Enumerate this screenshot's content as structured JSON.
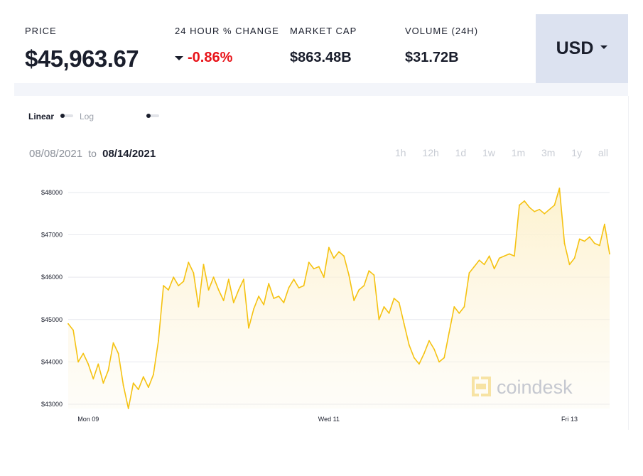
{
  "stats": {
    "price": {
      "label": "PRICE",
      "value": "$45,963.67"
    },
    "change": {
      "label": "24 HOUR % CHANGE",
      "value": "-0.86%"
    },
    "market_cap": {
      "label": "MARKET CAP",
      "value": "$863.48B"
    },
    "volume": {
      "label": "VOLUME (24H)",
      "value": "$31.72B"
    }
  },
  "currency": {
    "selected": "USD"
  },
  "scale_toggle": {
    "linear_label": "Linear",
    "log_label": "Log"
  },
  "date_range": {
    "from": "08/08/2021",
    "to_word": "to",
    "to": "08/14/2021"
  },
  "range_buttons": [
    "1h",
    "12h",
    "1d",
    "1w",
    "1m",
    "3m",
    "1y",
    "all"
  ],
  "watermark": "coindesk",
  "colors": {
    "line": "#f5c211",
    "fill": "#fdf3d6",
    "negative": "#e8141a",
    "currency_bg": "#dce2f0"
  },
  "chart_data": {
    "type": "area",
    "title": "",
    "xlabel": "",
    "ylabel": "",
    "x_ticks": [
      "Mon 09",
      "Wed 11",
      "Fri 13"
    ],
    "y_ticks": [
      "$43000",
      "$44000",
      "$45000",
      "$46000",
      "$47000",
      "$48000"
    ],
    "y_tick_values": [
      43000,
      44000,
      45000,
      46000,
      47000,
      48000
    ],
    "ylim": [
      42900,
      48150
    ],
    "x_tick_times": [
      "2021-08-09 00:00",
      "2021-08-11 00:00",
      "2021-08-13 00:00"
    ],
    "grid": "horizontal",
    "series": [
      {
        "values": [
          [
            "2021-08-08 20:00",
            44900
          ],
          [
            "2021-08-08 21:00",
            44750
          ],
          [
            "2021-08-08 22:00",
            44000
          ],
          [
            "2021-08-08 23:00",
            44200
          ],
          [
            "2021-08-09 00:00",
            43950
          ],
          [
            "2021-08-09 01:00",
            43600
          ],
          [
            "2021-08-09 02:00",
            43950
          ],
          [
            "2021-08-09 03:00",
            43500
          ],
          [
            "2021-08-09 04:00",
            43800
          ],
          [
            "2021-08-09 05:00",
            44450
          ],
          [
            "2021-08-09 06:00",
            44200
          ],
          [
            "2021-08-09 07:00",
            43450
          ],
          [
            "2021-08-09 08:00",
            42900
          ],
          [
            "2021-08-09 09:00",
            43500
          ],
          [
            "2021-08-09 10:00",
            43350
          ],
          [
            "2021-08-09 11:00",
            43650
          ],
          [
            "2021-08-09 12:00",
            43400
          ],
          [
            "2021-08-09 13:00",
            43700
          ],
          [
            "2021-08-09 14:00",
            44500
          ],
          [
            "2021-08-09 15:00",
            45800
          ],
          [
            "2021-08-09 16:00",
            45700
          ],
          [
            "2021-08-09 17:00",
            46000
          ],
          [
            "2021-08-09 18:00",
            45800
          ],
          [
            "2021-08-09 19:00",
            45900
          ],
          [
            "2021-08-09 20:00",
            46350
          ],
          [
            "2021-08-09 21:00",
            46100
          ],
          [
            "2021-08-09 22:00",
            45300
          ],
          [
            "2021-08-09 23:00",
            46300
          ],
          [
            "2021-08-10 00:00",
            45700
          ],
          [
            "2021-08-10 01:00",
            46000
          ],
          [
            "2021-08-10 02:00",
            45700
          ],
          [
            "2021-08-10 03:00",
            45450
          ],
          [
            "2021-08-10 04:00",
            45950
          ],
          [
            "2021-08-10 05:00",
            45400
          ],
          [
            "2021-08-10 06:00",
            45700
          ],
          [
            "2021-08-10 07:00",
            45950
          ],
          [
            "2021-08-10 08:00",
            44800
          ],
          [
            "2021-08-10 09:00",
            45250
          ],
          [
            "2021-08-10 10:00",
            45550
          ],
          [
            "2021-08-10 11:00",
            45350
          ],
          [
            "2021-08-10 12:00",
            45850
          ],
          [
            "2021-08-10 13:00",
            45500
          ],
          [
            "2021-08-10 14:00",
            45550
          ],
          [
            "2021-08-10 15:00",
            45400
          ],
          [
            "2021-08-10 16:00",
            45750
          ],
          [
            "2021-08-10 17:00",
            45950
          ],
          [
            "2021-08-10 18:00",
            45750
          ],
          [
            "2021-08-10 19:00",
            45800
          ],
          [
            "2021-08-10 20:00",
            46350
          ],
          [
            "2021-08-10 21:00",
            46200
          ],
          [
            "2021-08-10 22:00",
            46250
          ],
          [
            "2021-08-10 23:00",
            46000
          ],
          [
            "2021-08-11 00:00",
            46700
          ],
          [
            "2021-08-11 01:00",
            46450
          ],
          [
            "2021-08-11 02:00",
            46600
          ],
          [
            "2021-08-11 03:00",
            46500
          ],
          [
            "2021-08-11 04:00",
            46050
          ],
          [
            "2021-08-11 05:00",
            45450
          ],
          [
            "2021-08-11 06:00",
            45700
          ],
          [
            "2021-08-11 07:00",
            45800
          ],
          [
            "2021-08-11 08:00",
            46150
          ],
          [
            "2021-08-11 09:00",
            46050
          ],
          [
            "2021-08-11 10:00",
            45000
          ],
          [
            "2021-08-11 11:00",
            45300
          ],
          [
            "2021-08-11 12:00",
            45150
          ],
          [
            "2021-08-11 13:00",
            45500
          ],
          [
            "2021-08-11 14:00",
            45400
          ],
          [
            "2021-08-11 15:00",
            44900
          ],
          [
            "2021-08-11 16:00",
            44400
          ],
          [
            "2021-08-11 17:00",
            44100
          ],
          [
            "2021-08-11 18:00",
            43950
          ],
          [
            "2021-08-11 19:00",
            44200
          ],
          [
            "2021-08-11 20:00",
            44500
          ],
          [
            "2021-08-11 21:00",
            44300
          ],
          [
            "2021-08-11 22:00",
            44000
          ],
          [
            "2021-08-11 23:00",
            44100
          ],
          [
            "2021-08-12 00:00",
            44700
          ],
          [
            "2021-08-12 01:00",
            45300
          ],
          [
            "2021-08-12 02:00",
            45150
          ],
          [
            "2021-08-12 03:00",
            45300
          ],
          [
            "2021-08-12 04:00",
            46100
          ],
          [
            "2021-08-12 05:00",
            46250
          ],
          [
            "2021-08-12 06:00",
            46400
          ],
          [
            "2021-08-12 07:00",
            46300
          ],
          [
            "2021-08-12 08:00",
            46500
          ],
          [
            "2021-08-12 09:00",
            46200
          ],
          [
            "2021-08-12 10:00",
            46450
          ],
          [
            "2021-08-12 11:00",
            46500
          ],
          [
            "2021-08-12 12:00",
            46550
          ],
          [
            "2021-08-12 13:00",
            46500
          ],
          [
            "2021-08-12 14:00",
            47700
          ],
          [
            "2021-08-12 15:00",
            47800
          ],
          [
            "2021-08-12 16:00",
            47650
          ],
          [
            "2021-08-12 17:00",
            47550
          ],
          [
            "2021-08-12 18:00",
            47600
          ],
          [
            "2021-08-12 19:00",
            47500
          ],
          [
            "2021-08-12 20:00",
            47600
          ],
          [
            "2021-08-12 21:00",
            47700
          ],
          [
            "2021-08-12 22:00",
            48100
          ],
          [
            "2021-08-12 23:00",
            46800
          ],
          [
            "2021-08-13 00:00",
            46300
          ],
          [
            "2021-08-13 01:00",
            46450
          ],
          [
            "2021-08-13 02:00",
            46900
          ],
          [
            "2021-08-13 03:00",
            46850
          ],
          [
            "2021-08-13 04:00",
            46950
          ],
          [
            "2021-08-13 05:00",
            46800
          ],
          [
            "2021-08-13 06:00",
            46750
          ],
          [
            "2021-08-13 07:00",
            47250
          ],
          [
            "2021-08-13 08:00",
            46550
          ]
        ]
      }
    ]
  }
}
